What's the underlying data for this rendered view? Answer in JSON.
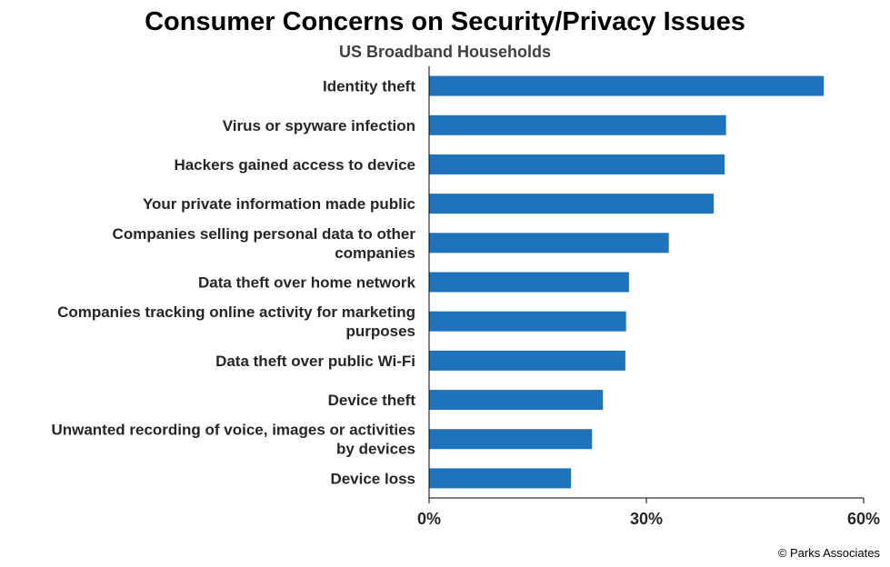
{
  "chart_data": {
    "type": "bar",
    "orientation": "horizontal",
    "title": "Consumer Concerns on Security/Privacy Issues",
    "subtitle": "US Broadband Households",
    "categories": [
      "Identity theft",
      "Virus or spyware infection",
      "Hackers gained access to device",
      "Your private information made public",
      "Companies selling personal data to other companies",
      "Data theft over home network",
      "Companies tracking online activity for marketing purposes",
      "Data theft over public Wi-Fi",
      "Device theft",
      "Unwanted recording of voice, images or activities by devices",
      "Device loss"
    ],
    "category_lines": [
      [
        "Identity theft"
      ],
      [
        "Virus or spyware infection"
      ],
      [
        "Hackers gained access to device"
      ],
      [
        "Your private information made public"
      ],
      [
        "Companies selling personal data to other",
        "companies"
      ],
      [
        "Data theft over home network"
      ],
      [
        "Companies tracking online activity for marketing",
        "purposes"
      ],
      [
        "Data theft over public Wi-Fi"
      ],
      [
        "Device theft"
      ],
      [
        "Unwanted recording of voice, images or activities",
        "by devices"
      ],
      [
        "Device loss"
      ]
    ],
    "values": [
      54.5,
      41,
      40.8,
      39.3,
      33.1,
      27.6,
      27.2,
      27.1,
      24,
      22.5,
      19.6
    ],
    "xlim": [
      0,
      60
    ],
    "xticks": [
      0,
      30,
      60
    ],
    "tick_labels": [
      "0%",
      "30%",
      "60%"
    ],
    "grid": false,
    "bar_color": "#1F73BD"
  },
  "footer": {
    "source": "© Parks Associates"
  }
}
